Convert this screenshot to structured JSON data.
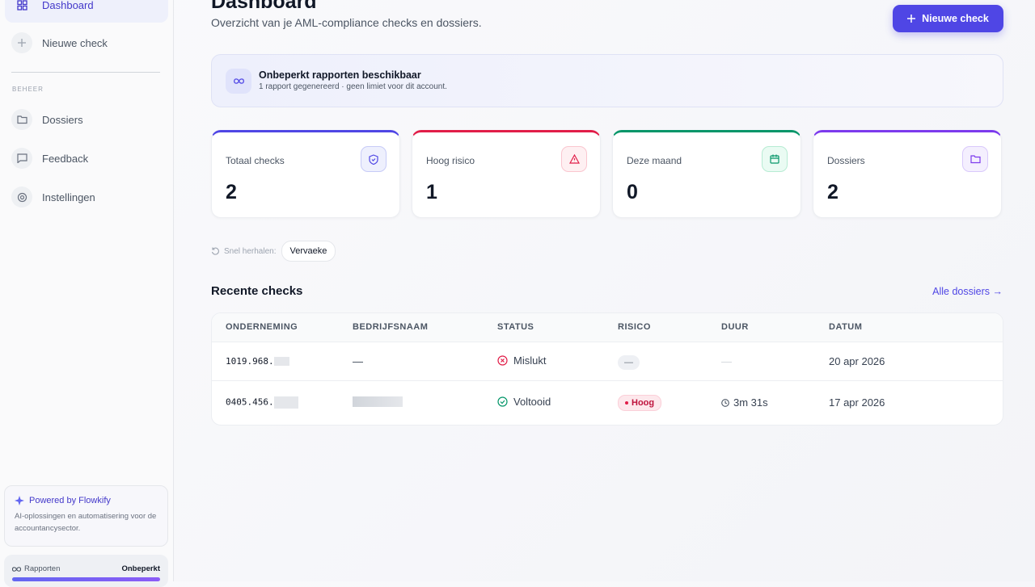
{
  "sidebar": {
    "nav": [
      {
        "label": "Dashboard"
      },
      {
        "label": "Nieuwe check"
      }
    ],
    "section": "BEHEER",
    "manage": [
      {
        "label": "Dossiers"
      },
      {
        "label": "Feedback"
      },
      {
        "label": "Instellingen"
      }
    ],
    "promo": {
      "title": "Powered by Flowkify",
      "text": "AI-oplossingen en automatisering voor de accountancysector."
    },
    "usage": {
      "label": "Rapporten",
      "value": "Onbeperkt"
    }
  },
  "header": {
    "title": "Dashboard",
    "subtitle": "Overzicht van je AML-compliance checks en dossiers.",
    "button": "Nieuwe check"
  },
  "banner": {
    "title": "Onbeperkt rapporten beschikbaar",
    "text": "1 rapport gegenereerd · geen limiet voor dit account."
  },
  "stats": [
    {
      "label": "Totaal checks",
      "value": "2"
    },
    {
      "label": "Hoog risico",
      "value": "1"
    },
    {
      "label": "Deze maand",
      "value": "0"
    },
    {
      "label": "Dossiers",
      "value": "2"
    }
  ],
  "quick": {
    "label": "Snel herhalen:",
    "items": [
      "Vervaeke"
    ]
  },
  "recent": {
    "title": "Recente checks",
    "link": "Alle dossiers →",
    "columns": [
      "ONDERNEMING",
      "BEDRIJFSNAAM",
      "STATUS",
      "RISICO",
      "DUUR",
      "DATUM"
    ],
    "rows": [
      {
        "company": "1019.968.",
        "name": "—",
        "status": "Mislukt",
        "risk": "—",
        "duration": "—",
        "date": "20 apr 2026"
      },
      {
        "company": "0405.456.",
        "status": "Voltooid",
        "risk": "Hoog",
        "duration": "3m 31s",
        "date": "17 apr 2026"
      }
    ]
  }
}
